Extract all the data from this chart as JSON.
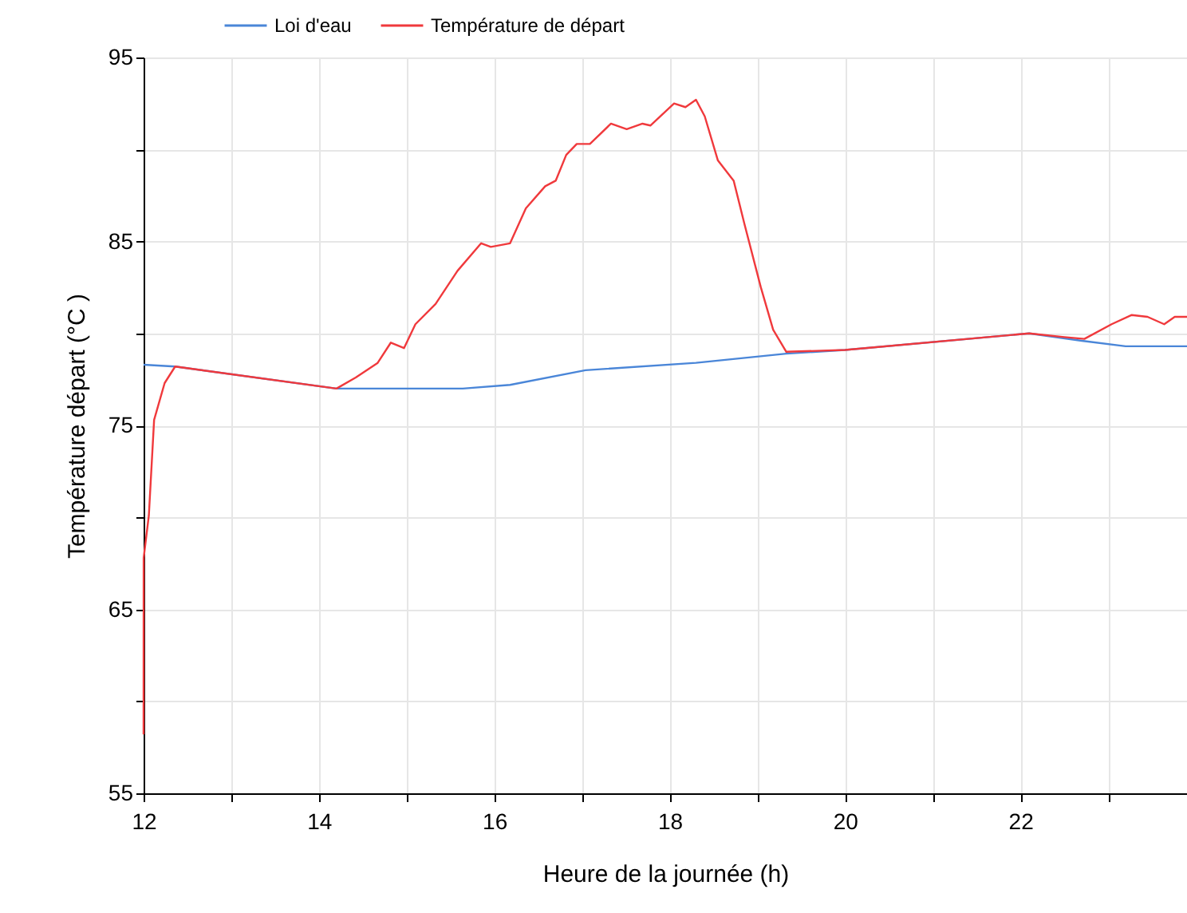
{
  "chart_data": {
    "type": "line",
    "xlabel": "Heure de la journée (h)",
    "ylabel": "Température départ (°C )",
    "xlim": [
      12,
      23.9
    ],
    "ylim": [
      55,
      95
    ],
    "xticks": [
      12,
      {
        "value": 13,
        "label": null
      },
      14,
      {
        "value": 15,
        "label": null
      },
      16,
      {
        "value": 17,
        "label": null
      },
      18,
      {
        "value": 19,
        "label": null
      },
      20,
      {
        "value": 21,
        "label": null
      },
      22,
      {
        "value": 23,
        "label": null
      }
    ],
    "yticks": [
      55,
      {
        "value": 60,
        "label": null
      },
      65,
      {
        "value": 70,
        "label": null
      },
      75,
      {
        "value": 80,
        "label": null
      },
      85,
      {
        "value": 90,
        "label": null
      },
      95
    ],
    "grid": true,
    "legend": "top left",
    "marker": "none",
    "line_style": "solid",
    "series": [
      {
        "name": "Loi d'eau",
        "color": "#4a86d8",
        "x": [
          12,
          12.36,
          14.2,
          15.64,
          16.18,
          17.04,
          18.3,
          19.33,
          20,
          22.1,
          22.7,
          23.2,
          23.9
        ],
        "values": [
          78.3,
          78.2,
          77.0,
          77.0,
          77.2,
          78.0,
          78.4,
          78.9,
          79.1,
          80.0,
          79.6,
          79.3,
          79.3
        ]
      },
      {
        "name": "Température de départ",
        "color": "#f0393c",
        "x": [
          12,
          12.001,
          12.06,
          12.12,
          12.24,
          12.36,
          14.2,
          14.42,
          14.67,
          14.82,
          14.97,
          15.1,
          15.33,
          15.58,
          15.85,
          15.96,
          16.18,
          16.36,
          16.58,
          16.7,
          16.82,
          16.94,
          17.09,
          17.33,
          17.51,
          17.69,
          17.78,
          18.05,
          18.18,
          18.3,
          18.4,
          18.55,
          18.73,
          18.85,
          19.04,
          19.18,
          19.33,
          20,
          22.1,
          22.5,
          22.73,
          23.04,
          23.27,
          23.45,
          23.64,
          23.76,
          23.9
        ],
        "values": [
          58.2,
          67.8,
          70.1,
          75.3,
          77.3,
          78.2,
          77.0,
          77.6,
          78.4,
          79.5,
          79.2,
          80.5,
          81.6,
          83.4,
          84.9,
          84.7,
          84.9,
          86.8,
          88.0,
          88.3,
          89.7,
          90.3,
          90.3,
          91.4,
          91.1,
          91.4,
          91.3,
          92.5,
          92.3,
          92.7,
          91.8,
          89.4,
          88.3,
          86.0,
          82.5,
          80.2,
          79.0,
          79.1,
          80.0,
          79.8,
          79.7,
          80.5,
          81.0,
          80.9,
          80.5,
          80.9,
          80.9
        ]
      }
    ]
  }
}
